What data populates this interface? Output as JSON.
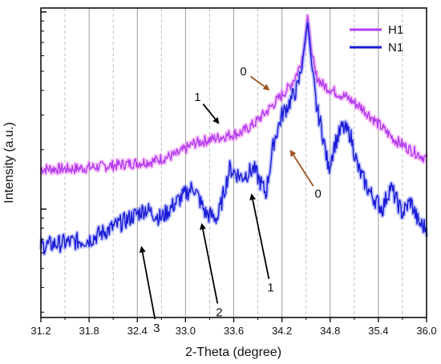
{
  "chart_data": {
    "type": "line",
    "xlabel": "2-Theta (degree)",
    "ylabel": "Intensity (a.u.)",
    "xlim": [
      31.2,
      36.0
    ],
    "x_ticks": [
      "31.2",
      "31.8",
      "32.4",
      "33.0",
      "33.6",
      "34.2",
      "34.8",
      "35.4",
      "36.0"
    ],
    "y_scale": "log",
    "grid": "vertical",
    "legend_position": "top-right",
    "series": [
      {
        "name": "H1",
        "color": "#b23cf0",
        "glow": "#f47cf7",
        "points": [
          [
            31.2,
            0.16
          ],
          [
            31.6,
            0.16
          ],
          [
            32.0,
            0.165
          ],
          [
            32.3,
            0.17
          ],
          [
            32.6,
            0.175
          ],
          [
            32.9,
            0.19
          ],
          [
            33.1,
            0.215
          ],
          [
            33.3,
            0.225
          ],
          [
            33.5,
            0.235
          ],
          [
            33.7,
            0.245
          ],
          [
            33.85,
            0.27
          ],
          [
            34.0,
            0.31
          ],
          [
            34.15,
            0.36
          ],
          [
            34.3,
            0.42
          ],
          [
            34.4,
            0.5
          ],
          [
            34.47,
            0.62
          ],
          [
            34.52,
            0.96
          ],
          [
            34.57,
            0.62
          ],
          [
            34.62,
            0.48
          ],
          [
            34.7,
            0.43
          ],
          [
            34.85,
            0.395
          ],
          [
            35.0,
            0.37
          ],
          [
            35.2,
            0.325
          ],
          [
            35.4,
            0.27
          ],
          [
            35.6,
            0.225
          ],
          [
            35.8,
            0.2
          ],
          [
            36.0,
            0.18
          ]
        ]
      },
      {
        "name": "N1",
        "color": "#1a1ad6",
        "glow": "#6f7bff",
        "points": [
          [
            31.2,
            0.065
          ],
          [
            31.8,
            0.07
          ],
          [
            32.2,
            0.085
          ],
          [
            32.5,
            0.1
          ],
          [
            32.7,
            0.09
          ],
          [
            32.9,
            0.11
          ],
          [
            33.1,
            0.13
          ],
          [
            33.25,
            0.095
          ],
          [
            33.4,
            0.09
          ],
          [
            33.55,
            0.16
          ],
          [
            33.7,
            0.145
          ],
          [
            33.85,
            0.16
          ],
          [
            34.0,
            0.12
          ],
          [
            34.1,
            0.22
          ],
          [
            34.2,
            0.3
          ],
          [
            34.3,
            0.35
          ],
          [
            34.4,
            0.42
          ],
          [
            34.46,
            0.58
          ],
          [
            34.52,
            0.89
          ],
          [
            34.57,
            0.54
          ],
          [
            34.63,
            0.33
          ],
          [
            34.7,
            0.25
          ],
          [
            34.78,
            0.16
          ],
          [
            34.85,
            0.21
          ],
          [
            34.95,
            0.26
          ],
          [
            35.05,
            0.24
          ],
          [
            35.15,
            0.16
          ],
          [
            35.3,
            0.12
          ],
          [
            35.45,
            0.1
          ],
          [
            35.55,
            0.13
          ],
          [
            35.7,
            0.095
          ],
          [
            35.8,
            0.11
          ],
          [
            35.9,
            0.085
          ],
          [
            36.0,
            0.08
          ]
        ]
      }
    ],
    "annotations": [
      {
        "text": "1",
        "x": 33.15,
        "y": 0.37,
        "arrow_to": [
          33.42,
          0.27
        ],
        "arrow_color": "#000000"
      },
      {
        "text": "0",
        "x": 33.72,
        "y": 0.5,
        "arrow_to": [
          34.05,
          0.4
        ],
        "arrow_color": "#a0501a"
      },
      {
        "text": "0",
        "x": 34.65,
        "y": 0.12,
        "arrow_to": [
          34.3,
          0.2
        ],
        "arrow_color": "#a0501a"
      },
      {
        "text": "1",
        "x": 34.06,
        "y": 0.04,
        "arrow_to": [
          33.82,
          0.12
        ],
        "arrow_color": "#000000"
      },
      {
        "text": "2",
        "x": 33.42,
        "y": 0.03,
        "arrow_to": [
          33.2,
          0.085
        ],
        "arrow_color": "#000000"
      },
      {
        "text": "3",
        "x": 32.64,
        "y": 0.025,
        "arrow_to": [
          32.45,
          0.065
        ],
        "arrow_color": "#000000"
      }
    ]
  }
}
